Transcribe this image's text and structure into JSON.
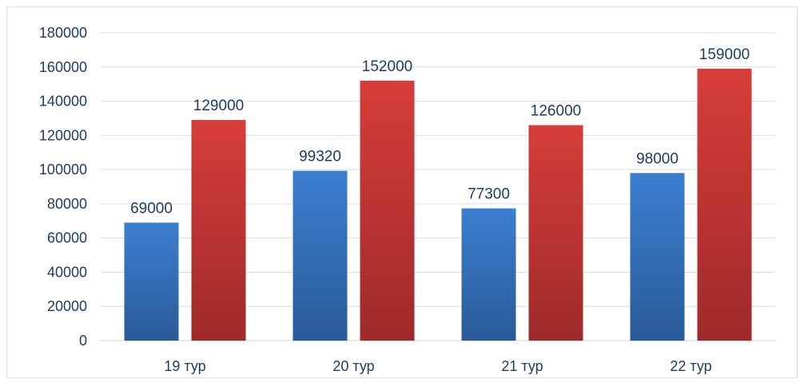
{
  "chart_data": {
    "type": "bar",
    "title": "",
    "xlabel": "",
    "ylabel": "",
    "categories": [
      "19 тур",
      "20 тур",
      "21 тур",
      "22 тур"
    ],
    "series": [
      {
        "values": [
          69000,
          99320,
          77300,
          98000
        ],
        "color": "#3b78c6"
      },
      {
        "values": [
          129000,
          152000,
          126000,
          159000
        ],
        "color": "#c8373a"
      }
    ],
    "ylim": [
      0,
      180000
    ],
    "yticks": [
      0,
      20000,
      40000,
      60000,
      80000,
      100000,
      120000,
      140000,
      160000,
      180000
    ],
    "grid": true,
    "legend": "none",
    "colors": {
      "series_1_light": "#3b7fd0",
      "series_1_dark": "#2a5a98",
      "series_2_light": "#d63d3a",
      "series_2_dark": "#9e2a2a",
      "gridline": "#d9dde3",
      "text": "#1f3a5f"
    }
  }
}
